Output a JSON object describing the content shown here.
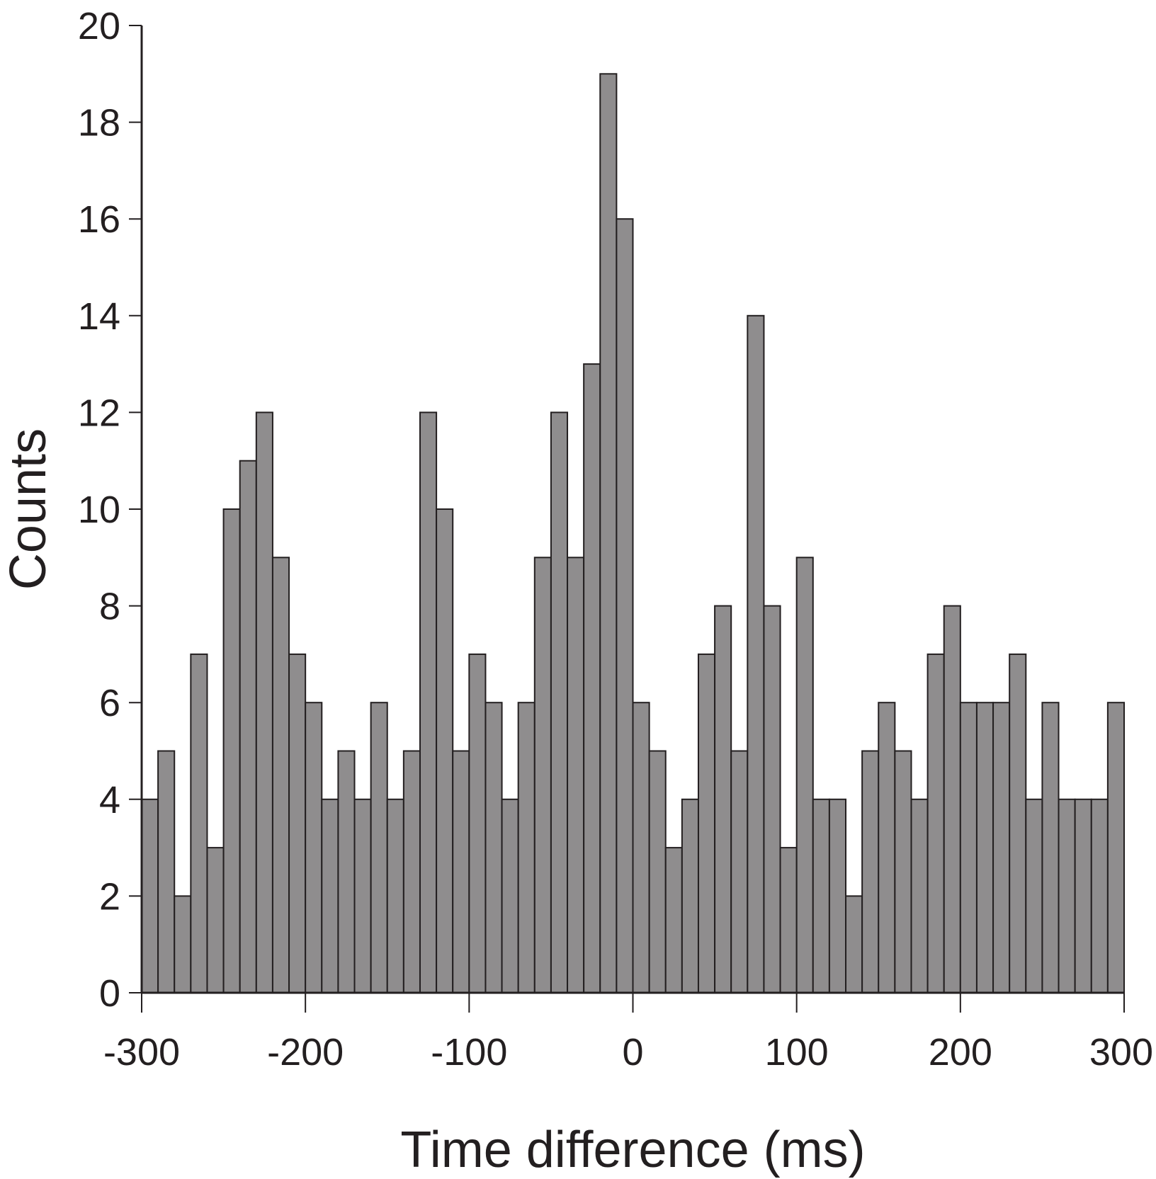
{
  "chart_data": {
    "type": "bar",
    "title": "",
    "xlabel": "Time difference (ms)",
    "ylabel": "Counts",
    "xlim": [
      -300,
      300
    ],
    "ylim": [
      0,
      20
    ],
    "bin_width": 10,
    "bin_starts": [
      -300,
      -290,
      -280,
      -270,
      -260,
      -250,
      -240,
      -230,
      -220,
      -210,
      -200,
      -190,
      -180,
      -170,
      -160,
      -150,
      -140,
      -130,
      -120,
      -110,
      -100,
      -90,
      -80,
      -70,
      -60,
      -50,
      -40,
      -30,
      -20,
      -10,
      0,
      10,
      20,
      30,
      40,
      50,
      60,
      70,
      80,
      90,
      100,
      110,
      120,
      130,
      140,
      150,
      160,
      170,
      180,
      190,
      200,
      210,
      220,
      230,
      240,
      250,
      260,
      270,
      280,
      290
    ],
    "values": [
      4,
      5,
      2,
      7,
      3,
      10,
      11,
      12,
      9,
      7,
      6,
      4,
      5,
      4,
      6,
      4,
      5,
      12,
      10,
      5,
      7,
      6,
      4,
      6,
      9,
      12,
      9,
      13,
      19,
      16,
      6,
      5,
      3,
      4,
      7,
      8,
      5,
      14,
      8,
      3,
      9,
      4,
      4,
      2,
      5,
      6,
      5,
      4,
      7,
      8,
      6,
      6,
      6,
      7,
      4,
      6,
      4,
      4,
      4,
      6
    ],
    "x_ticks": [
      -300,
      -200,
      -100,
      0,
      100,
      200,
      300
    ],
    "x_tick_labels": [
      "-300",
      "-200",
      "-100",
      "0",
      "100",
      "200",
      "300"
    ],
    "y_ticks": [
      0,
      2,
      4,
      6,
      8,
      10,
      12,
      14,
      16,
      18,
      20
    ],
    "y_tick_labels": [
      "0",
      "2",
      "4",
      "6",
      "8",
      "10",
      "12",
      "14",
      "16",
      "18",
      "20"
    ],
    "grid": false,
    "bar_color": "#8f8d8e",
    "edge_color": "#231f20"
  }
}
